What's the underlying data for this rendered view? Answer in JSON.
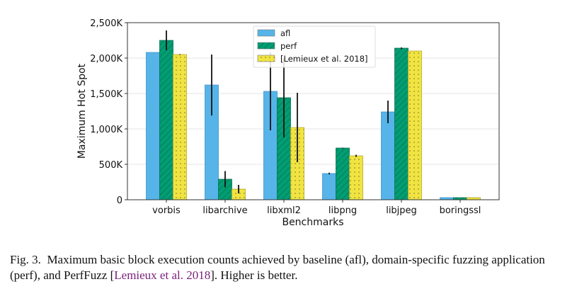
{
  "chart_data": {
    "type": "bar",
    "title": "",
    "xlabel": "Benchmarks",
    "ylabel": "Maximum Hot Spot",
    "ylim": [
      0,
      2500000
    ],
    "yticks": [
      0,
      500000,
      1000000,
      1500000,
      2000000,
      2500000
    ],
    "ytick_labels": [
      "0",
      "500K",
      "1,000K",
      "1,500K",
      "2,000K",
      "2,500K"
    ],
    "categories": [
      "vorbis",
      "libarchive",
      "libxml2",
      "libpng",
      "libjpeg",
      "boringssl"
    ],
    "legend_position": "top-center",
    "series": [
      {
        "name": "afl",
        "color": "#56B4E9",
        "pattern": "none",
        "values": [
          2080000,
          1620000,
          1530000,
          370000,
          1240000,
          30000
        ],
        "error": [
          0,
          430000,
          550000,
          12000,
          160000,
          0
        ]
      },
      {
        "name": "perf",
        "color": "#009E73",
        "pattern": "hatch",
        "values": [
          2250000,
          290000,
          1440000,
          730000,
          2140000,
          30000
        ],
        "error": [
          140000,
          115000,
          560000,
          5000,
          10000,
          0
        ]
      },
      {
        "name": "[Lemieux et al. 2018]",
        "color": "#F0E442",
        "pattern": "dots",
        "values": [
          2050000,
          150000,
          1020000,
          620000,
          2100000,
          30000
        ],
        "error": [
          5000,
          60000,
          490000,
          15000,
          0,
          0
        ]
      }
    ]
  },
  "caption": {
    "label": "Fig. 3.",
    "text_before": "Maximum basic block execution counts achieved by baseline (afl), domain-specific fuzzing application (perf), and PerfFuzz [",
    "citation": "Lemieux et al. 2018",
    "text_after": "]. Higher is better."
  }
}
